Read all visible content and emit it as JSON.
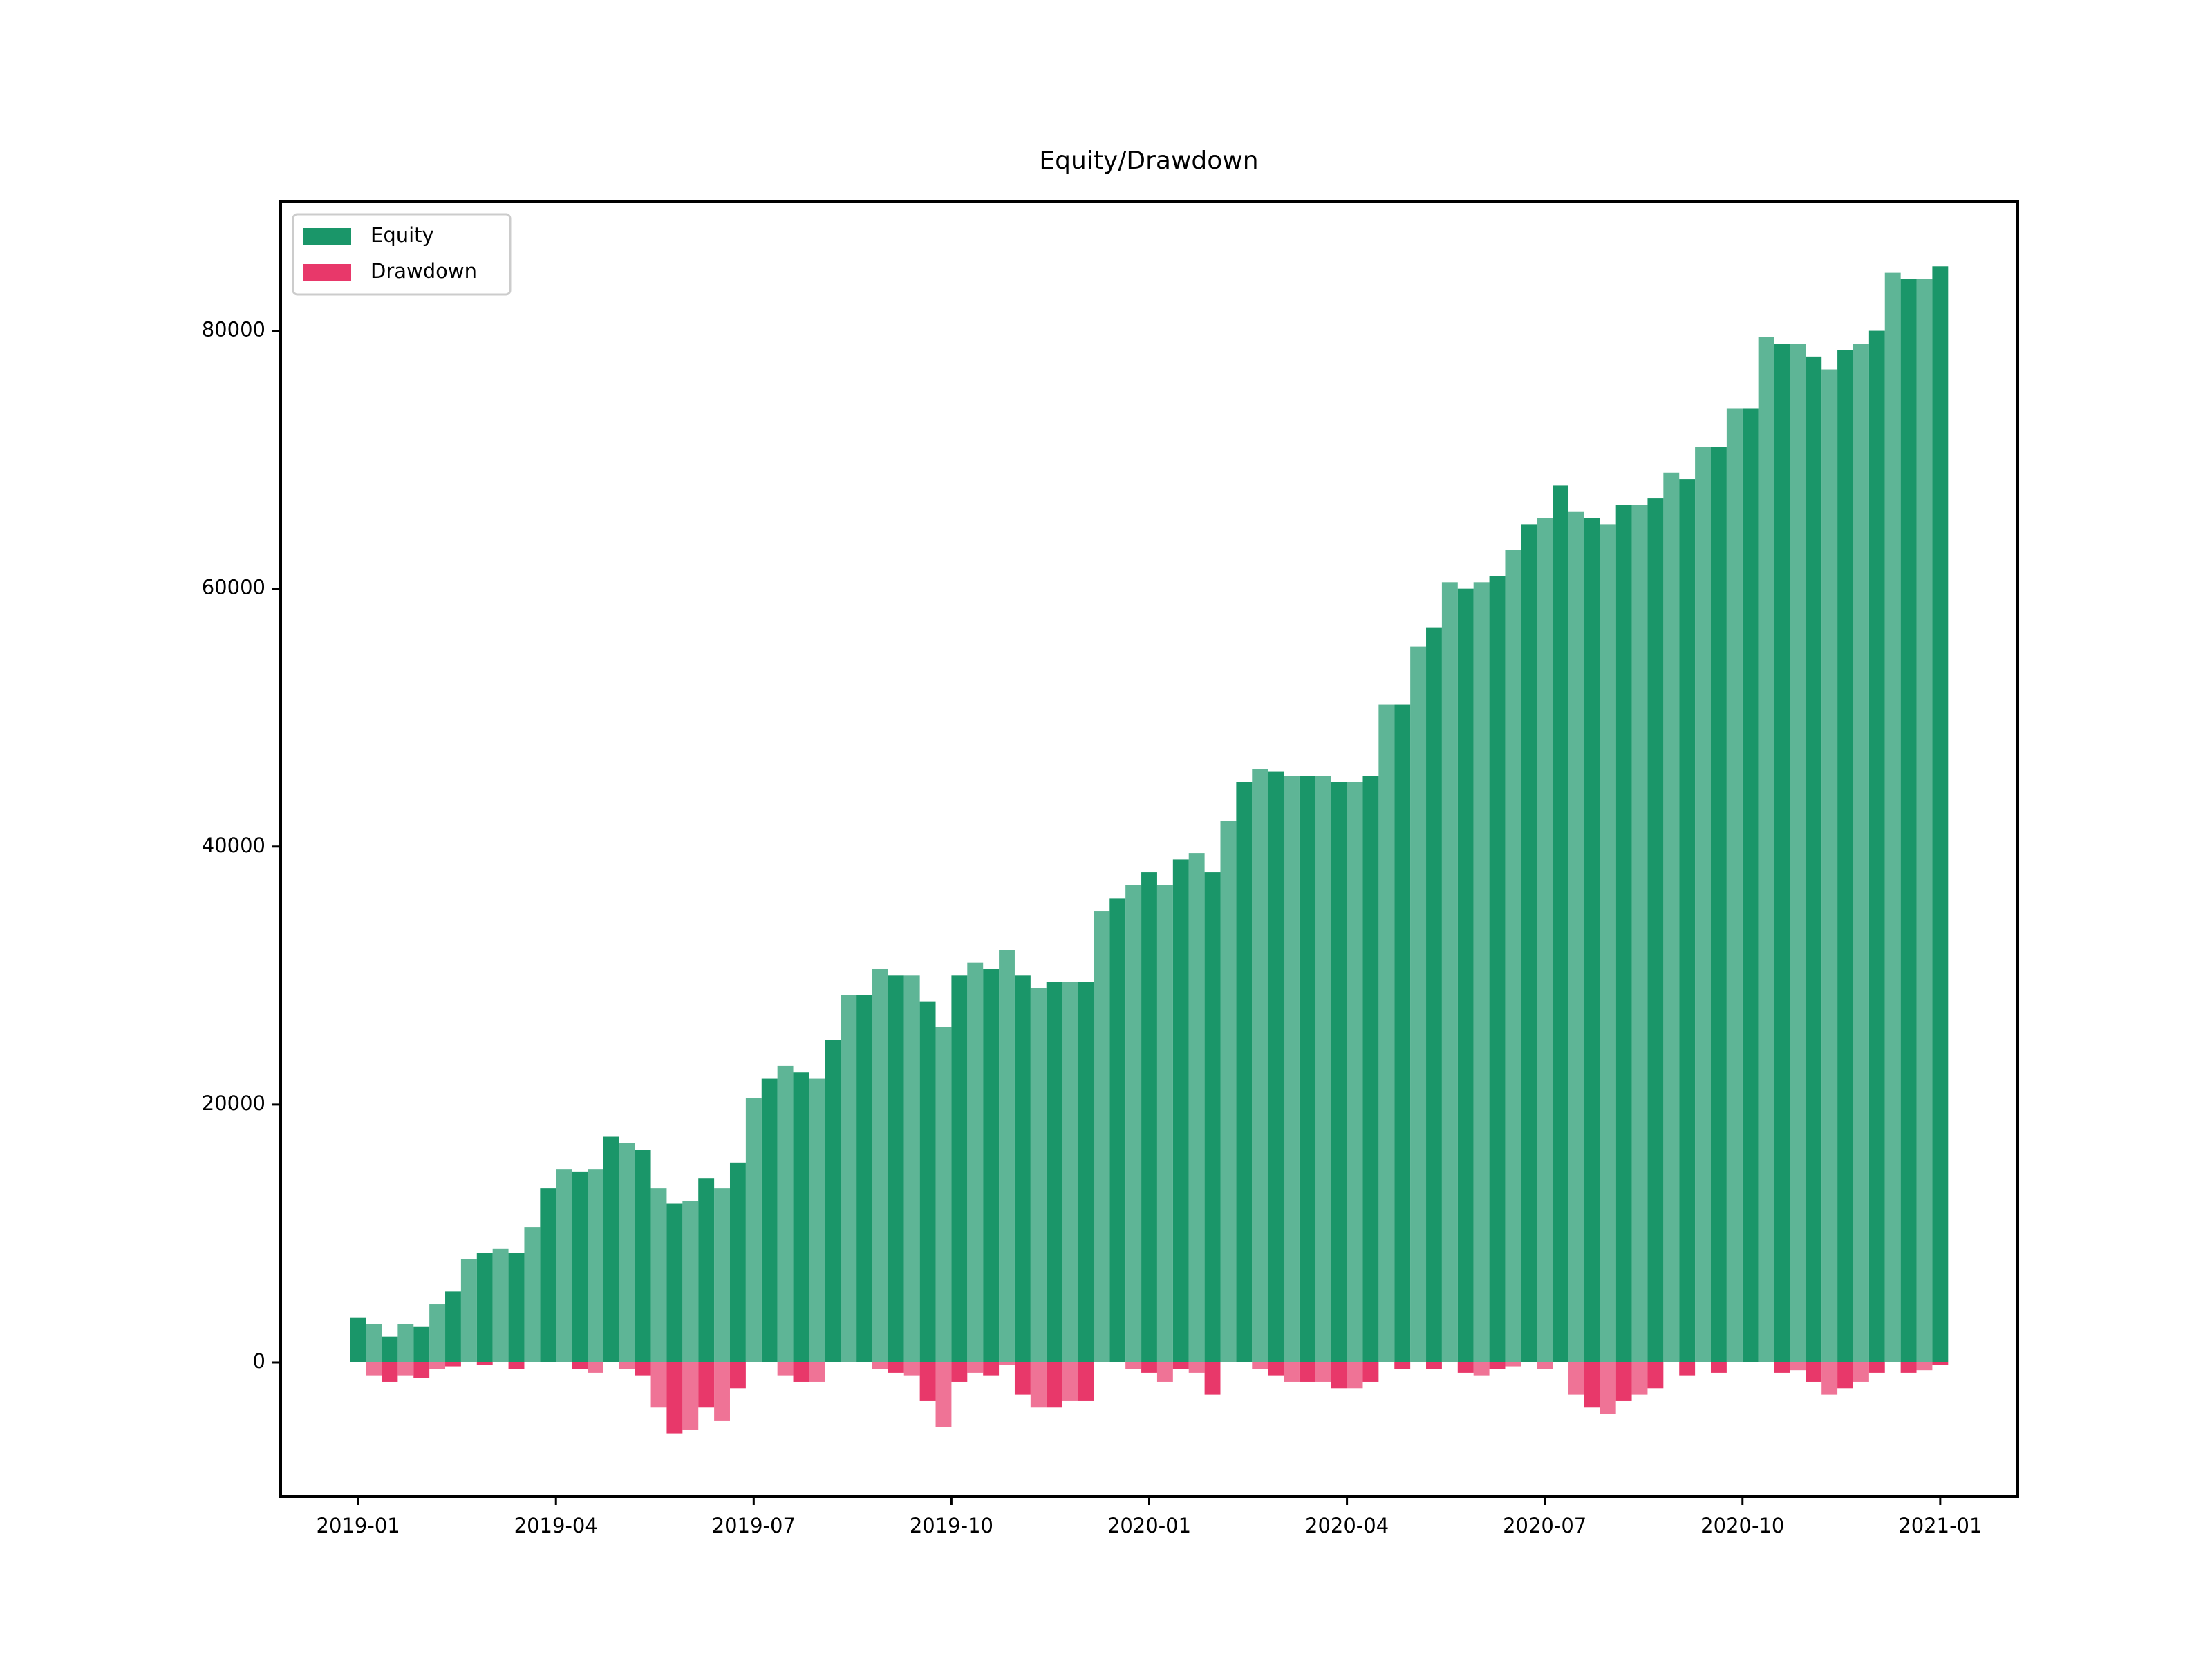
{
  "chart_data": {
    "type": "bar",
    "title": "Equity/Drawdown",
    "x": [
      2019,
      2019.02,
      2019.04,
      2019.06,
      2019.08,
      2019.1,
      2019.12,
      2019.14,
      2019.16,
      2019.18,
      2019.2,
      2019.22,
      2019.24,
      2019.26,
      2019.28,
      2019.3,
      2019.32,
      2019.34,
      2019.36,
      2019.38,
      2019.4,
      2019.42,
      2019.44,
      2019.46,
      2019.48,
      2019.5,
      2019.52,
      2019.54,
      2019.56,
      2019.58,
      2019.6,
      2019.62,
      2019.64,
      2019.66,
      2019.68,
      2019.7,
      2019.72,
      2019.74,
      2019.76,
      2019.78,
      2019.8,
      2019.82,
      2019.84,
      2019.86,
      2019.88,
      2019.9,
      2019.92,
      2019.94,
      2019.96,
      2019.98,
      2020,
      2020.02,
      2020.04,
      2020.06,
      2020.08,
      2020.1,
      2020.12,
      2020.14,
      2020.16,
      2020.18,
      2020.2,
      2020.22,
      2020.24,
      2020.26,
      2020.28,
      2020.3,
      2020.32,
      2020.34,
      2020.36,
      2020.38,
      2020.4,
      2020.42,
      2020.44,
      2020.46,
      2020.48,
      2020.5,
      2020.52,
      2020.54,
      2020.56,
      2020.58,
      2020.6,
      2020.62,
      2020.64,
      2020.66,
      2020.68,
      2020.7,
      2020.72,
      2020.74,
      2020.76,
      2020.78,
      2020.8,
      2020.82,
      2020.84,
      2020.86,
      2020.88,
      2020.9,
      2020.92,
      2020.94,
      2020.96,
      2020.98,
      2021
    ],
    "series": [
      {
        "name": "Equity",
        "color": "#1a9669",
        "values": [
          3500,
          3000,
          2000,
          3000,
          2800,
          4500,
          5500,
          8000,
          8500,
          8800,
          8500,
          10500,
          13500,
          15000,
          14800,
          15000,
          17500,
          17000,
          16500,
          13500,
          12300,
          12500,
          14300,
          13500,
          15500,
          20500,
          22000,
          23000,
          22500,
          22000,
          25000,
          28500,
          28500,
          30500,
          30000,
          30000,
          28000,
          26000,
          30000,
          31000,
          30500,
          32000,
          30000,
          29000,
          29500,
          29500,
          29500,
          35000,
          36000,
          37000,
          38000,
          37000,
          39000,
          39500,
          38000,
          42000,
          45000,
          46000,
          45800,
          45500,
          45500,
          45500,
          45000,
          45000,
          45500,
          51000,
          51000,
          55500,
          57000,
          60500,
          60000,
          60500,
          61000,
          63000,
          65000,
          65500,
          68000,
          66000,
          65500,
          65000,
          66500,
          66500,
          67000,
          69000,
          68500,
          71000,
          71000,
          74000,
          74000,
          79500,
          79000,
          79000,
          78000,
          77000,
          78500,
          79000,
          80000,
          84500,
          84000,
          84000,
          85000
        ]
      },
      {
        "name": "Drawdown",
        "color": "#e8386a",
        "values": [
          0,
          -1000,
          -1500,
          -1000,
          -1200,
          -500,
          -300,
          0,
          -200,
          0,
          -500,
          0,
          0,
          0,
          -500,
          -800,
          0,
          -500,
          -1000,
          -3500,
          -5500,
          -5200,
          -3500,
          -4500,
          -2000,
          0,
          0,
          -1000,
          -1500,
          -1500,
          0,
          0,
          0,
          -500,
          -800,
          -1000,
          -3000,
          -5000,
          -1500,
          -800,
          -1000,
          -200,
          -2500,
          -3500,
          -3500,
          -3000,
          -3000,
          0,
          0,
          -500,
          -800,
          -1500,
          -500,
          -800,
          -2500,
          0,
          0,
          -500,
          -1000,
          -1500,
          -1500,
          -1500,
          -2000,
          -2000,
          -1500,
          0,
          -500,
          0,
          -500,
          0,
          -800,
          -1000,
          -500,
          -300,
          0,
          -500,
          0,
          -2500,
          -3500,
          -4000,
          -3000,
          -2500,
          -2000,
          0,
          -1000,
          0,
          -800,
          0,
          0,
          0,
          -800,
          -600,
          -1500,
          -2500,
          -2000,
          -1500,
          -800,
          0,
          -800,
          -600,
          -200
        ]
      }
    ],
    "xlim": [
      2018.902,
      2021.098
    ],
    "xticks": [
      {
        "value": 2019,
        "label": "2019-01"
      },
      {
        "value": 2019.25,
        "label": "2019-04"
      },
      {
        "value": 2019.5,
        "label": "2019-07"
      },
      {
        "value": 2019.75,
        "label": "2019-10"
      },
      {
        "value": 2020,
        "label": "2020-01"
      },
      {
        "value": 2020.25,
        "label": "2020-04"
      },
      {
        "value": 2020.5,
        "label": "2020-07"
      },
      {
        "value": 2020.75,
        "label": "2020-10"
      },
      {
        "value": 2021,
        "label": "2021-01"
      }
    ],
    "ylim": [
      -10400,
      90000
    ],
    "yticks": [
      0,
      20000,
      40000,
      60000,
      80000
    ],
    "legend": "upper left"
  }
}
